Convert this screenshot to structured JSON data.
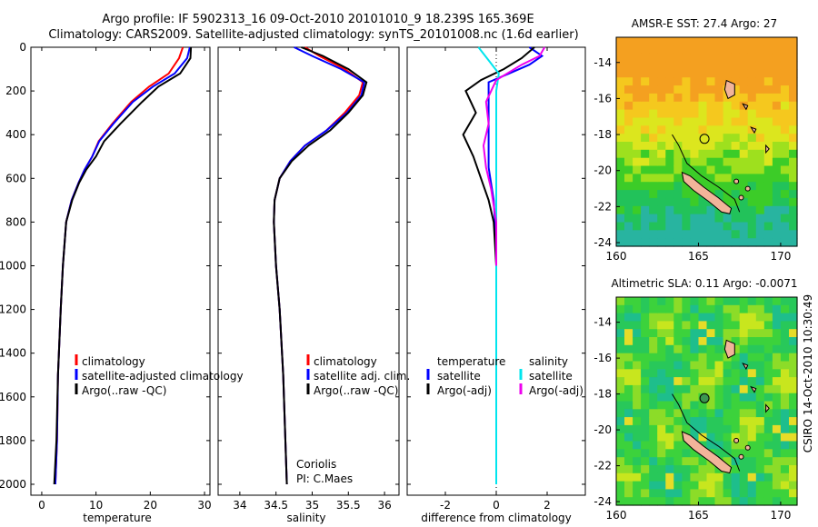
{
  "header": {
    "line1": "Argo profile: IF 5902313_16 09-Oct-2010 20101010_9 18.239S 165.369E",
    "line2": "Climatology: CARS2009. Satellite-adjusted climatology: synTS_20101008.nc (1.6d earlier)"
  },
  "footer": {
    "credit": "CSIRO 14-Oct-2010 10:30:49"
  },
  "colors": {
    "climatology": "#ff0000",
    "satellite": "#0000ff",
    "argo": "#000000",
    "sal_satellite": "#00e5ee",
    "sal_argo": "#ee00ee"
  },
  "chart_data": [
    {
      "id": "temperature",
      "type": "line",
      "xlabel": "temperature",
      "ylabel": "",
      "xlim": [
        -2,
        31
      ],
      "ylim": [
        2050,
        0
      ],
      "xticks": [
        0,
        10,
        20,
        30
      ],
      "yticks": [
        0,
        200,
        400,
        600,
        800,
        1000,
        1200,
        1400,
        1600,
        1800,
        2000
      ],
      "legend": {
        "position": "lower-right",
        "entries": [
          "climatology",
          "satellite-adjusted climatology",
          "Argo(..raw -QC)"
        ]
      },
      "series": [
        {
          "name": "climatology",
          "color": "#ff0000",
          "x": [
            26.0,
            25.3,
            23.4,
            19.8,
            16.5,
            13.0,
            10.5,
            9.3,
            7.9,
            6.8,
            5.5,
            4.5,
            3.9,
            3.5,
            3.0,
            2.8,
            2.5
          ],
          "y": [
            0,
            50,
            120,
            180,
            250,
            350,
            430,
            500,
            560,
            620,
            700,
            800,
            1000,
            1200,
            1500,
            1800,
            2000
          ]
        },
        {
          "name": "satellite-adjusted climatology",
          "color": "#0000ff",
          "x": [
            27.3,
            26.8,
            24.5,
            20.5,
            16.8,
            13.2,
            10.6,
            9.3,
            7.9,
            6.8,
            5.5,
            4.5,
            3.9,
            3.5,
            3.0,
            2.8,
            2.5
          ],
          "y": [
            0,
            50,
            120,
            180,
            250,
            350,
            430,
            500,
            560,
            620,
            700,
            800,
            1000,
            1200,
            1500,
            1800,
            2000
          ]
        },
        {
          "name": "Argo(..raw -QC)",
          "color": "#000000",
          "x": [
            27.5,
            27.4,
            25.5,
            21.5,
            18.5,
            14.5,
            11.5,
            10.0,
            8.2,
            6.9,
            5.6,
            4.5,
            3.9,
            3.5,
            3.0,
            2.7,
            2.3
          ],
          "y": [
            0,
            50,
            120,
            180,
            250,
            350,
            430,
            500,
            560,
            620,
            700,
            800,
            1000,
            1200,
            1500,
            1800,
            2000
          ]
        }
      ]
    },
    {
      "id": "salinity",
      "type": "line",
      "xlabel": "salinity",
      "xlim": [
        33.7,
        36.2
      ],
      "ylim": [
        2050,
        0
      ],
      "xticks": [
        34,
        34.5,
        35,
        35.5,
        36
      ],
      "yticks": [
        0,
        200,
        400,
        600,
        800,
        1000,
        1200,
        1400,
        1600,
        1800,
        2000
      ],
      "legend": {
        "position": "lower-right",
        "entries": [
          "climatology",
          "satellite adj. clim.",
          "Argo(..raw -QC)"
        ]
      },
      "annotations": [
        "Coriolis",
        "PI: C.Maes"
      ],
      "series": [
        {
          "name": "climatology",
          "color": "#ff0000",
          "x": [
            34.9,
            35.1,
            35.45,
            35.7,
            35.65,
            35.45,
            35.2,
            34.9,
            34.7,
            34.55,
            34.48,
            34.47,
            34.5,
            34.55,
            34.6,
            34.63,
            34.65
          ],
          "y": [
            0,
            40,
            100,
            160,
            220,
            300,
            380,
            450,
            520,
            600,
            700,
            800,
            1000,
            1200,
            1500,
            1800,
            2000
          ]
        },
        {
          "name": "satellite adj. clim.",
          "color": "#0000ff",
          "x": [
            34.75,
            35.0,
            35.4,
            35.72,
            35.68,
            35.48,
            35.2,
            34.9,
            34.7,
            34.55,
            34.48,
            34.47,
            34.5,
            34.55,
            34.6,
            34.63,
            34.65
          ],
          "y": [
            0,
            40,
            100,
            160,
            220,
            300,
            380,
            450,
            520,
            600,
            700,
            800,
            1000,
            1200,
            1500,
            1800,
            2000
          ]
        },
        {
          "name": "Argo(..raw -QC)",
          "color": "#000000",
          "x": [
            34.85,
            35.15,
            35.5,
            35.75,
            35.7,
            35.5,
            35.25,
            34.95,
            34.72,
            34.55,
            34.48,
            34.47,
            34.5,
            34.55,
            34.6,
            34.63,
            34.65
          ],
          "y": [
            0,
            40,
            100,
            160,
            220,
            300,
            380,
            450,
            520,
            600,
            700,
            800,
            1000,
            1200,
            1500,
            1800,
            2000
          ]
        }
      ]
    },
    {
      "id": "difference",
      "type": "line",
      "xlabel": "difference from climatology",
      "xlim": [
        -3.5,
        3.5
      ],
      "ylim": [
        2050,
        0
      ],
      "xticks": [
        -2,
        0,
        2
      ],
      "yticks": [
        0,
        200,
        400,
        600,
        800,
        1000,
        1200,
        1400,
        1600,
        1800,
        2000
      ],
      "legend": {
        "position": "lower",
        "groups": [
          {
            "title": "temperature",
            "entries": [
              "satellite",
              "Argo(-adj)"
            ]
          },
          {
            "title": "salinity",
            "entries": [
              "satellite",
              "Argo(-adj)"
            ]
          }
        ]
      },
      "series": [
        {
          "name": "temperature satellite",
          "color": "#0000ff",
          "x": [
            1.3,
            1.8,
            1.3,
            0.5,
            -0.3,
            -0.3,
            -0.3,
            -0.3,
            -0.1,
            0.0,
            0.0,
            0.0,
            0.0
          ],
          "y": [
            0,
            40,
            80,
            120,
            160,
            250,
            400,
            550,
            700,
            900,
            1200,
            1600,
            2000
          ]
        },
        {
          "name": "temperature Argo(-adj)",
          "color": "#000000",
          "x": [
            1.5,
            1.0,
            0.3,
            -0.6,
            -1.2,
            -0.8,
            -1.3,
            -0.9,
            -0.6,
            -0.3,
            -0.1,
            0.0,
            0.0,
            0.0
          ],
          "y": [
            0,
            50,
            100,
            150,
            200,
            300,
            400,
            500,
            600,
            700,
            800,
            1000,
            1500,
            2000
          ]
        },
        {
          "name": "salinity satellite",
          "color": "#00e5ee",
          "x": [
            -0.7,
            -0.3,
            0.1,
            0.0,
            0.0,
            0.0,
            0.0,
            0.0,
            0.0,
            0.0
          ],
          "y": [
            0,
            60,
            120,
            200,
            350,
            500,
            700,
            1000,
            1500,
            2000
          ]
        },
        {
          "name": "salinity Argo(-adj)",
          "color": "#ee00ee",
          "x": [
            1.9,
            1.7,
            1.0,
            0.0,
            -0.4,
            -0.3,
            -0.5,
            -0.4,
            -0.2,
            0.0,
            0.0
          ],
          "y": [
            0,
            40,
            80,
            150,
            250,
            350,
            450,
            550,
            650,
            800,
            1000
          ]
        }
      ]
    },
    {
      "id": "sst_map",
      "type": "heatmap",
      "title": "AMSR-E SST: 27.4 Argo: 27",
      "xlim": [
        160,
        171
      ],
      "ylim": [
        -24.2,
        -12.6
      ],
      "xticks": [
        160,
        165,
        170
      ],
      "yticks": [
        -14,
        -16,
        -18,
        -20,
        -22,
        -24
      ],
      "marker": {
        "lon": 165.369,
        "lat": -18.239
      }
    },
    {
      "id": "sla_map",
      "type": "heatmap",
      "title": "Altimetric SLA: 0.11 Argo: -0.0071",
      "xlim": [
        160,
        171
      ],
      "ylim": [
        -24.2,
        -12.6
      ],
      "xticks": [
        160,
        165,
        170
      ],
      "yticks": [
        -14,
        -16,
        -18,
        -20,
        -22,
        -24
      ],
      "marker": {
        "lon": 165.369,
        "lat": -18.239
      }
    }
  ]
}
